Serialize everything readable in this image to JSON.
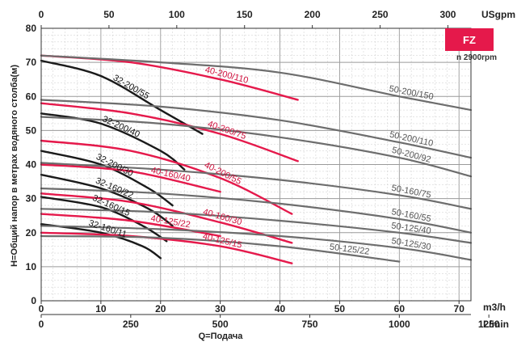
{
  "chart_data": {
    "type": "line",
    "badge": "FZ",
    "speed_note": "n  2900rpm",
    "ylabel": "H=Общий напор в метрах водяного столба(м)",
    "xlabel": "Q=Подача",
    "ylim": [
      0,
      80
    ],
    "xlim_m3h": [
      0,
      72
    ],
    "grid": true,
    "y_ticks": [
      "0",
      "10",
      "20",
      "30",
      "40",
      "50",
      "60",
      "70",
      "80"
    ],
    "x_ticks_m3h": [
      "0",
      "10",
      "20",
      "30",
      "40",
      "50",
      "60",
      "70"
    ],
    "x_unit_m3h": "m3/h",
    "x_ticks_lmin": [
      "0",
      "250",
      "500",
      "750",
      "1000",
      "1250"
    ],
    "x_unit_lmin": "L/min",
    "x_ticks_usgpm": [
      "0",
      "50",
      "100",
      "150",
      "200",
      "250",
      "300"
    ],
    "x_unit_usgpm": "USgpm",
    "colors": {
      "family_32": "#1a1a1a",
      "family_40": "#e5194b",
      "family_50": "#6d6d6d",
      "badge": "#e5194b"
    },
    "series": [
      {
        "name": "32-200/55",
        "family": "32",
        "points": [
          [
            0,
            70.5
          ],
          [
            10,
            66
          ],
          [
            20,
            56
          ],
          [
            27,
            49
          ]
        ]
      },
      {
        "name": "32-200/40",
        "family": "32",
        "points": [
          [
            0,
            55
          ],
          [
            10,
            52
          ],
          [
            20,
            44
          ],
          [
            24,
            38.5
          ]
        ]
      },
      {
        "name": "32-200/30",
        "family": "32",
        "points": [
          [
            0,
            44
          ],
          [
            10,
            40
          ],
          [
            18,
            33
          ],
          [
            22,
            28
          ]
        ]
      },
      {
        "name": "32-160/22",
        "family": "32",
        "points": [
          [
            0,
            37
          ],
          [
            10,
            33
          ],
          [
            18,
            27
          ],
          [
            22,
            22
          ]
        ]
      },
      {
        "name": "32-160/15",
        "family": "32",
        "points": [
          [
            0,
            30.5
          ],
          [
            10,
            27.5
          ],
          [
            17,
            22
          ],
          [
            21,
            17.5
          ]
        ]
      },
      {
        "name": "32-160/11",
        "family": "32",
        "points": [
          [
            0,
            22.5
          ],
          [
            10,
            20
          ],
          [
            17,
            16
          ],
          [
            20,
            12.5
          ]
        ]
      },
      {
        "name": "40-200/110",
        "family": "40",
        "points": [
          [
            0,
            72
          ],
          [
            15,
            70
          ],
          [
            30,
            65
          ],
          [
            43,
            59
          ]
        ]
      },
      {
        "name": "40-200/75",
        "family": "40",
        "points": [
          [
            0,
            58
          ],
          [
            15,
            55
          ],
          [
            30,
            49
          ],
          [
            43,
            41
          ]
        ]
      },
      {
        "name": "40-200/55",
        "family": "40",
        "points": [
          [
            0,
            47
          ],
          [
            15,
            44
          ],
          [
            30,
            36
          ],
          [
            42,
            25.5
          ]
        ]
      },
      {
        "name": "40-160/40",
        "family": "40",
        "points": [
          [
            0,
            40
          ],
          [
            15,
            38
          ],
          [
            30,
            32
          ]
        ]
      },
      {
        "name": "40-160/30",
        "family": "40",
        "points": [
          [
            0,
            31.5
          ],
          [
            15,
            29
          ],
          [
            30,
            23
          ],
          [
            42,
            17
          ]
        ]
      },
      {
        "name": "40-125/22",
        "family": "40",
        "points": [
          [
            0,
            25.5
          ],
          [
            15,
            23.5
          ],
          [
            30,
            19
          ]
        ]
      },
      {
        "name": "40-125/15",
        "family": "40",
        "points": [
          [
            0,
            20
          ],
          [
            15,
            19
          ],
          [
            30,
            16
          ],
          [
            42,
            11
          ]
        ]
      },
      {
        "name": "50-200/150",
        "family": "50",
        "points": [
          [
            0,
            72
          ],
          [
            20,
            70
          ],
          [
            40,
            67
          ],
          [
            60,
            60
          ],
          [
            72,
            56
          ]
        ]
      },
      {
        "name": "50-200/110",
        "family": "50",
        "points": [
          [
            0,
            59
          ],
          [
            20,
            57
          ],
          [
            40,
            53
          ],
          [
            60,
            46.5
          ],
          [
            72,
            42
          ]
        ]
      },
      {
        "name": "50-200/92",
        "family": "50",
        "points": [
          [
            0,
            54
          ],
          [
            20,
            52
          ],
          [
            40,
            48
          ],
          [
            60,
            42
          ],
          [
            72,
            36.5
          ]
        ]
      },
      {
        "name": "50-160/75",
        "family": "50",
        "points": [
          [
            0,
            40.5
          ],
          [
            20,
            38.5
          ],
          [
            40,
            35.5
          ],
          [
            60,
            31
          ],
          [
            72,
            27
          ]
        ]
      },
      {
        "name": "50-160/55",
        "family": "50",
        "points": [
          [
            0,
            33
          ],
          [
            20,
            31.5
          ],
          [
            40,
            28.5
          ],
          [
            60,
            24
          ],
          [
            72,
            20
          ]
        ]
      },
      {
        "name": "50-125/40",
        "family": "50",
        "points": [
          [
            0,
            27
          ],
          [
            20,
            26
          ],
          [
            40,
            23.5
          ],
          [
            60,
            20
          ],
          [
            72,
            17
          ]
        ]
      },
      {
        "name": "50-125/30",
        "family": "50",
        "points": [
          [
            0,
            22
          ],
          [
            20,
            21
          ],
          [
            40,
            19
          ],
          [
            60,
            15.5
          ],
          [
            72,
            12
          ]
        ]
      },
      {
        "name": "50-125/22",
        "family": "50",
        "points": [
          [
            0,
            19
          ],
          [
            20,
            18.5
          ],
          [
            40,
            16
          ],
          [
            60,
            11.5
          ]
        ]
      }
    ]
  }
}
